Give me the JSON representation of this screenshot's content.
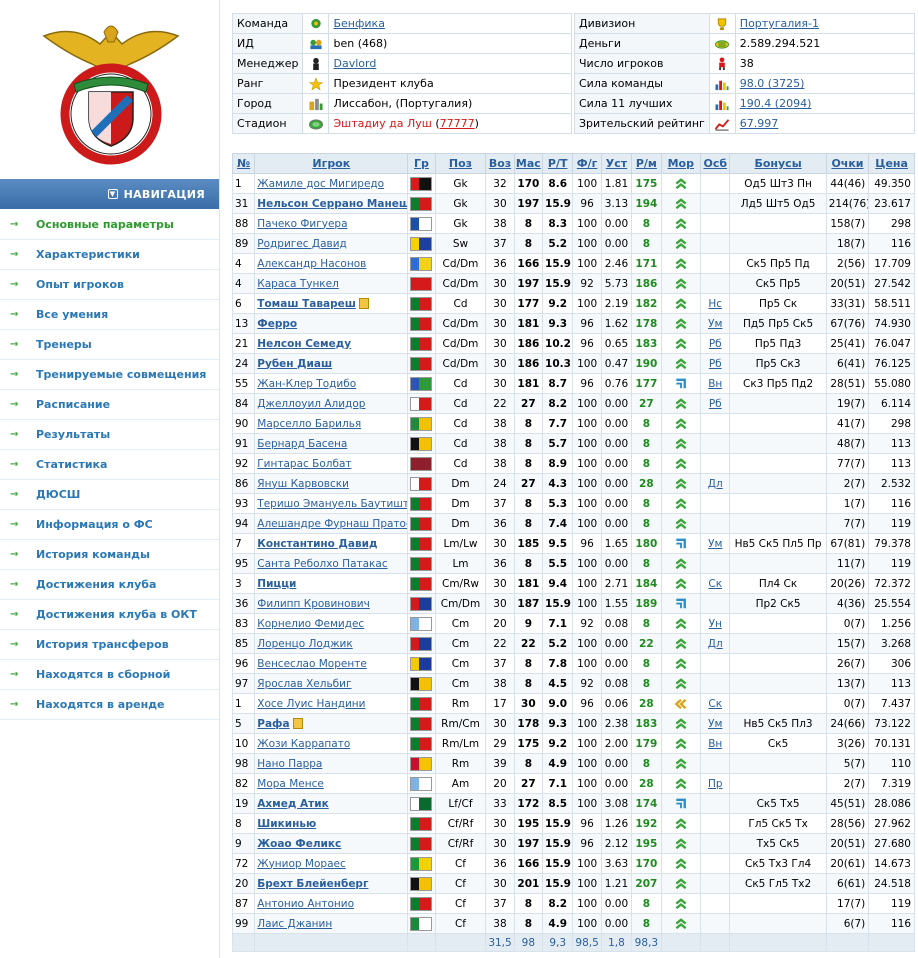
{
  "nav": {
    "header": "НАВИГАЦИЯ",
    "items": [
      "Основные параметры",
      "Характеристики",
      "Опыт игроков",
      "Все умения",
      "Тренеры",
      "Тренируемые совмещения",
      "Расписание",
      "Результаты",
      "Статистика",
      "ДЮСШ",
      "Информация о ФС",
      "История команды",
      "Достижения клуба",
      "Достижения клуба в ОКТ",
      "История трансферов",
      "Находятся в сборной",
      "Находятся в аренде"
    ]
  },
  "info_left": [
    {
      "label": "Команда",
      "value": "Бенфика",
      "link": true,
      "icon": "team-icon"
    },
    {
      "label": "ИД",
      "value": "ben (468)",
      "link": false,
      "icon": "id-icon"
    },
    {
      "label": "Менеджер",
      "value": "Davlord",
      "link": true,
      "icon": "manager-icon"
    },
    {
      "label": "Ранг",
      "value": "Президент клуба",
      "link": false,
      "icon": "star-icon"
    },
    {
      "label": "Город",
      "value": "Лиссабон, (Португалия)",
      "link": false,
      "icon": "city-icon"
    },
    {
      "label": "Стадион",
      "value": "Эштадиу да Луш",
      "extra": "77777",
      "link": "red",
      "icon": "stadium-icon"
    }
  ],
  "info_right": [
    {
      "label": "Дивизион",
      "value": "Португалия-1",
      "link": true,
      "icon": "trophy-icon"
    },
    {
      "label": "Деньги",
      "value": "2.589.294.521",
      "link": false,
      "icon": "money-icon"
    },
    {
      "label": "Число игроков",
      "value": "38",
      "link": false,
      "icon": "player-count-icon"
    },
    {
      "label": "Сила команды",
      "value": "98.0 (3725)",
      "link": true,
      "icon": "bar-chart-icon"
    },
    {
      "label": "Сила 11 лучших",
      "value": "190.4 (2094)",
      "link": true,
      "icon": "bar-chart-icon"
    },
    {
      "label": "Зрительский рейтинг",
      "value": "67.997",
      "link": true,
      "icon": "rating-icon"
    }
  ],
  "columns": [
    "№",
    "Игрок",
    "Гр",
    "Поз",
    "Воз",
    "Мас",
    "Р/Т",
    "Ф/г",
    "Уст",
    "Р/м",
    "Мор",
    "Осб",
    "Бонусы",
    "Очки",
    "Цена"
  ],
  "players": [
    {
      "n": "1",
      "name": "Жамиле дос Мигиредо",
      "b": false,
      "flag": "angola",
      "pos": "Gk",
      "age": "32",
      "mas": "170",
      "rt": "8.6",
      "fg": "100",
      "ust": "1.81",
      "rm": "175",
      "mor": "up",
      "osb": "",
      "bon": "Од5 Шт3 Пн",
      "pts": "44(46)",
      "price": "49.350"
    },
    {
      "n": "31",
      "name": "Нельсон Серрано Манеш",
      "b": true,
      "flag": "portugal",
      "pos": "Gk",
      "age": "30",
      "mas": "197",
      "rt": "15.9",
      "fg": "96",
      "ust": "3.13",
      "rm": "194",
      "mor": "up",
      "osb": "",
      "bon": "Лд5 Шт5 Од5",
      "pts": "214(76)",
      "price": "23.617"
    },
    {
      "n": "88",
      "name": "Пачеко Фигуера",
      "b": false,
      "flag": "honduras",
      "pos": "Gk",
      "age": "38",
      "mas": "8",
      "rt": "8.3",
      "fg": "100",
      "ust": "0.00",
      "rm": "8",
      "mor": "up",
      "osb": "",
      "bon": "",
      "pts": "158(7)",
      "price": "298"
    },
    {
      "n": "89",
      "name": "Родригес Давид",
      "b": false,
      "flag": "colombia",
      "pos": "Sw",
      "age": "37",
      "mas": "8",
      "rt": "5.2",
      "fg": "100",
      "ust": "0.00",
      "rm": "8",
      "mor": "up",
      "osb": "",
      "bon": "",
      "pts": "18(7)",
      "price": "116"
    },
    {
      "n": "4",
      "name": "Александр Насонов",
      "b": false,
      "flag": "ukraine",
      "pos": "Cd/Dm",
      "age": "36",
      "mas": "166",
      "rt": "15.9",
      "fg": "100",
      "ust": "2.46",
      "rm": "171",
      "mor": "up",
      "osb": "",
      "bon": "Ск5 Пр5 Пд",
      "pts": "2(56)",
      "price": "17.709"
    },
    {
      "n": "4",
      "name": "Караса Тункел",
      "b": false,
      "flag": "turkey",
      "pos": "Cd/Dm",
      "age": "30",
      "mas": "197",
      "rt": "15.9",
      "fg": "92",
      "ust": "5.73",
      "rm": "186",
      "mor": "up",
      "osb": "",
      "bon": "Ск5 Пр5",
      "pts": "20(51)",
      "price": "27.542"
    },
    {
      "n": "6",
      "name": "Томаш Тавареш",
      "b": true,
      "note": true,
      "flag": "portugal",
      "pos": "Cd",
      "age": "30",
      "mas": "177",
      "rt": "9.2",
      "fg": "100",
      "ust": "2.19",
      "rm": "182",
      "mor": "up",
      "osb": "Нс",
      "bon": "Пр5 Ск",
      "pts": "33(31)",
      "price": "58.511"
    },
    {
      "n": "13",
      "name": "Ферро",
      "b": true,
      "flag": "portugal",
      "pos": "Cd/Dm",
      "age": "30",
      "mas": "181",
      "rt": "9.3",
      "fg": "96",
      "ust": "1.62",
      "rm": "178",
      "mor": "up",
      "osb": "Ум",
      "bon": "Пд5 Пр5 Ск5",
      "pts": "67(76)",
      "price": "74.930"
    },
    {
      "n": "21",
      "name": "Нелсон Семеду",
      "b": true,
      "flag": "portugal",
      "pos": "Cd/Dm",
      "age": "30",
      "mas": "186",
      "rt": "10.2",
      "fg": "96",
      "ust": "0.65",
      "rm": "183",
      "mor": "up",
      "osb": "Рб",
      "bon": "Пр5 Пд3",
      "pts": "25(41)",
      "price": "76.047"
    },
    {
      "n": "24",
      "name": "Рубен Диаш",
      "b": true,
      "flag": "portugal",
      "pos": "Cd/Dm",
      "age": "30",
      "mas": "186",
      "rt": "10.3",
      "fg": "100",
      "ust": "0.47",
      "rm": "190",
      "mor": "up",
      "osb": "Рб",
      "bon": "Пр5 Ск3",
      "pts": "6(41)",
      "price": "76.125"
    },
    {
      "n": "55",
      "name": "Жан-Клер Тодибо",
      "b": false,
      "flag": "cafrica",
      "pos": "Cd",
      "age": "30",
      "mas": "181",
      "rt": "8.7",
      "fg": "96",
      "ust": "0.76",
      "rm": "177",
      "mor": "right",
      "osb": "Вн",
      "bon": "Ск3 Пр5 Пд2",
      "pts": "28(51)",
      "price": "55.080"
    },
    {
      "n": "84",
      "name": "Джеллоуил Алидор",
      "b": false,
      "flag": "haiti",
      "pos": "Cd",
      "age": "22",
      "mas": "27",
      "rt": "8.2",
      "fg": "100",
      "ust": "0.00",
      "rm": "27",
      "mor": "up",
      "osb": "Рб",
      "bon": "",
      "pts": "19(7)",
      "price": "6.114"
    },
    {
      "n": "90",
      "name": "Марселло Барилья",
      "b": false,
      "flag": "togo",
      "pos": "Cd",
      "age": "38",
      "mas": "8",
      "rt": "7.7",
      "fg": "100",
      "ust": "0.00",
      "rm": "8",
      "mor": "up",
      "osb": "",
      "bon": "",
      "pts": "41(7)",
      "price": "298"
    },
    {
      "n": "91",
      "name": "Бернард Басена",
      "b": false,
      "flag": "uganda",
      "pos": "Cd",
      "age": "38",
      "mas": "8",
      "rt": "5.7",
      "fg": "100",
      "ust": "0.00",
      "rm": "8",
      "mor": "up",
      "osb": "",
      "bon": "",
      "pts": "48(7)",
      "price": "113"
    },
    {
      "n": "92",
      "name": "Гинтарас Болбат",
      "b": false,
      "flag": "latvia",
      "pos": "Cd",
      "age": "38",
      "mas": "8",
      "rt": "8.9",
      "fg": "100",
      "ust": "0.00",
      "rm": "8",
      "mor": "up",
      "osb": "",
      "bon": "",
      "pts": "77(7)",
      "price": "113"
    },
    {
      "n": "86",
      "name": "Януш Карвовски",
      "b": false,
      "flag": "poland",
      "pos": "Dm",
      "age": "24",
      "mas": "27",
      "rt": "4.3",
      "fg": "100",
      "ust": "0.00",
      "rm": "28",
      "mor": "up",
      "osb": "Дл",
      "bon": "",
      "pts": "2(7)",
      "price": "2.532"
    },
    {
      "n": "93",
      "name": "Теришо Эмануель Баутишта",
      "b": false,
      "flag": "portugal",
      "pos": "Dm",
      "age": "37",
      "mas": "8",
      "rt": "5.3",
      "fg": "100",
      "ust": "0.00",
      "rm": "8",
      "mor": "up",
      "osb": "",
      "bon": "",
      "pts": "1(7)",
      "price": "116"
    },
    {
      "n": "94",
      "name": "Алешандре Фурнаш Пратос",
      "b": false,
      "flag": "portugal",
      "pos": "Dm",
      "age": "36",
      "mas": "8",
      "rt": "7.4",
      "fg": "100",
      "ust": "0.00",
      "rm": "8",
      "mor": "up",
      "osb": "",
      "bon": "",
      "pts": "7(7)",
      "price": "119"
    },
    {
      "n": "7",
      "name": "Константино Давид",
      "b": true,
      "flag": "portugal",
      "pos": "Lm/Lw",
      "age": "30",
      "mas": "185",
      "rt": "9.5",
      "fg": "96",
      "ust": "1.65",
      "rm": "180",
      "mor": "right",
      "osb": "Ум",
      "bon": "Нв5 Ск5 Пл5 Пр",
      "pts": "67(81)",
      "price": "79.378"
    },
    {
      "n": "95",
      "name": "Санта Реболхо Патакас",
      "b": false,
      "flag": "portugal",
      "pos": "Lm",
      "age": "36",
      "mas": "8",
      "rt": "5.5",
      "fg": "100",
      "ust": "0.00",
      "rm": "8",
      "mor": "up",
      "osb": "",
      "bon": "",
      "pts": "11(7)",
      "price": "119"
    },
    {
      "n": "3",
      "name": "Пицци",
      "b": true,
      "flag": "portugal",
      "pos": "Cm/Rw",
      "age": "30",
      "mas": "181",
      "rt": "9.4",
      "fg": "100",
      "ust": "2.71",
      "rm": "184",
      "mor": "up",
      "osb": "Ск",
      "bon": "Пл4 Ск",
      "pts": "20(26)",
      "price": "72.372"
    },
    {
      "n": "36",
      "name": "Филипп Кровинович",
      "b": false,
      "flag": "croatia",
      "pos": "Cm/Dm",
      "age": "30",
      "mas": "187",
      "rt": "15.9",
      "fg": "100",
      "ust": "1.55",
      "rm": "189",
      "mor": "right",
      "osb": "",
      "bon": "Пр2 Ск5",
      "pts": "4(36)",
      "price": "25.554"
    },
    {
      "n": "83",
      "name": "Корнелио Фемидес",
      "b": false,
      "flag": "argentina",
      "pos": "Cm",
      "age": "20",
      "mas": "9",
      "rt": "7.1",
      "fg": "92",
      "ust": "0.08",
      "rm": "8",
      "mor": "up",
      "osb": "Ун",
      "bon": "",
      "pts": "0(7)",
      "price": "1.256"
    },
    {
      "n": "85",
      "name": "Лоренцо Лоджик",
      "b": false,
      "flag": "croatia",
      "pos": "Cm",
      "age": "22",
      "mas": "22",
      "rt": "5.2",
      "fg": "100",
      "ust": "0.00",
      "rm": "22",
      "mor": "up",
      "osb": "Дл",
      "bon": "",
      "pts": "15(7)",
      "price": "3.268"
    },
    {
      "n": "96",
      "name": "Венсеслао Моренте",
      "b": false,
      "flag": "venezuela",
      "pos": "Cm",
      "age": "37",
      "mas": "8",
      "rt": "7.8",
      "fg": "100",
      "ust": "0.00",
      "rm": "8",
      "mor": "up",
      "osb": "",
      "bon": "",
      "pts": "26(7)",
      "price": "306"
    },
    {
      "n": "97",
      "name": "Ярослав Хельбиг",
      "b": false,
      "flag": "germany",
      "pos": "Cm",
      "age": "38",
      "mas": "8",
      "rt": "4.5",
      "fg": "92",
      "ust": "0.08",
      "rm": "8",
      "mor": "up",
      "osb": "",
      "bon": "",
      "pts": "13(7)",
      "price": "113"
    },
    {
      "n": "1",
      "name": "Хосе Луис Нандини",
      "b": false,
      "flag": "portugal",
      "pos": "Rm",
      "age": "17",
      "mas": "30",
      "rt": "9.0",
      "fg": "96",
      "ust": "0.06",
      "rm": "28",
      "mor": "left",
      "osb": "Ск",
      "bon": "",
      "pts": "0(7)",
      "price": "7.437"
    },
    {
      "n": "5",
      "name": "Рафа",
      "b": true,
      "note": true,
      "flag": "portugal",
      "pos": "Rm/Cm",
      "age": "30",
      "mas": "178",
      "rt": "9.3",
      "fg": "100",
      "ust": "2.38",
      "rm": "183",
      "mor": "up",
      "osb": "Ум",
      "bon": "Нв5 Ск5 Пл3",
      "pts": "24(66)",
      "price": "73.122"
    },
    {
      "n": "10",
      "name": "Жози Каррапато",
      "b": false,
      "flag": "portugal",
      "pos": "Rm/Lm",
      "age": "29",
      "mas": "175",
      "rt": "9.2",
      "fg": "100",
      "ust": "2.00",
      "rm": "179",
      "mor": "up",
      "osb": "Вн",
      "bon": "Ск5",
      "pts": "3(26)",
      "price": "70.131"
    },
    {
      "n": "98",
      "name": "Нано Парра",
      "b": false,
      "flag": "spain",
      "pos": "Rm",
      "age": "39",
      "mas": "8",
      "rt": "4.9",
      "fg": "100",
      "ust": "0.00",
      "rm": "8",
      "mor": "up",
      "osb": "",
      "bon": "",
      "pts": "5(7)",
      "price": "110"
    },
    {
      "n": "82",
      "name": "Мора Менсе",
      "b": false,
      "flag": "argentina",
      "pos": "Am",
      "age": "20",
      "mas": "27",
      "rt": "7.1",
      "fg": "100",
      "ust": "0.00",
      "rm": "28",
      "mor": "up",
      "osb": "Пр",
      "bon": "",
      "pts": "2(7)",
      "price": "7.319"
    },
    {
      "n": "19",
      "name": "Ахмед Атик",
      "b": true,
      "flag": "pakistan",
      "pos": "Lf/Cf",
      "age": "33",
      "mas": "172",
      "rt": "8.5",
      "fg": "100",
      "ust": "3.08",
      "rm": "174",
      "mor": "right",
      "osb": "",
      "bon": "Ск5 Тх5",
      "pts": "45(51)",
      "price": "28.086"
    },
    {
      "n": "8",
      "name": "Шикинью",
      "b": true,
      "flag": "portugal",
      "pos": "Cf/Rf",
      "age": "30",
      "mas": "195",
      "rt": "15.9",
      "fg": "96",
      "ust": "1.26",
      "rm": "192",
      "mor": "up",
      "osb": "",
      "bon": "Гл5 Ск5 Тх",
      "pts": "28(56)",
      "price": "27.962"
    },
    {
      "n": "9",
      "name": "Жоао Феликс",
      "b": true,
      "flag": "portugal",
      "pos": "Cf/Rf",
      "age": "30",
      "mas": "197",
      "rt": "15.9",
      "fg": "96",
      "ust": "2.12",
      "rm": "195",
      "mor": "up",
      "osb": "",
      "bon": "Тх5 Ск5",
      "pts": "20(51)",
      "price": "27.680"
    },
    {
      "n": "72",
      "name": "Жуниор Мораес",
      "b": false,
      "flag": "brazil",
      "pos": "Cf",
      "age": "36",
      "mas": "166",
      "rt": "15.9",
      "fg": "100",
      "ust": "3.63",
      "rm": "170",
      "mor": "up",
      "osb": "",
      "bon": "Ск5 Тх3 Гл4",
      "pts": "20(61)",
      "price": "14.673"
    },
    {
      "n": "20",
      "name": "Брехт Блейенберг",
      "b": true,
      "flag": "belgium",
      "pos": "Cf",
      "age": "30",
      "mas": "201",
      "rt": "15.9",
      "fg": "100",
      "ust": "1.21",
      "rm": "207",
      "mor": "up",
      "osb": "",
      "bon": "Ск5 Гл5 Тх2",
      "pts": "6(61)",
      "price": "24.518"
    },
    {
      "n": "87",
      "name": "Антонио Антонио",
      "b": false,
      "flag": "portugal",
      "pos": "Cf",
      "age": "37",
      "mas": "8",
      "rt": "8.2",
      "fg": "100",
      "ust": "0.00",
      "rm": "8",
      "mor": "up",
      "osb": "",
      "bon": "",
      "pts": "17(7)",
      "price": "119"
    },
    {
      "n": "99",
      "name": "Лаис Джанин",
      "b": false,
      "flag": "algeria",
      "pos": "Cf",
      "age": "38",
      "mas": "8",
      "rt": "4.9",
      "fg": "100",
      "ust": "0.00",
      "rm": "8",
      "mor": "up",
      "osb": "",
      "bon": "",
      "pts": "6(7)",
      "price": "116"
    }
  ],
  "footer": {
    "age": "31,5",
    "mas": "98",
    "rt": "9,3",
    "fg": "98,5",
    "ust": "1,8",
    "rm": "98,3"
  },
  "flags": {
    "portugal": [
      "#0f7d2e",
      "#d61a1a"
    ],
    "angola": [
      "#d81a1a",
      "#111111"
    ],
    "honduras": [
      "#1b4fa8",
      "#ffffff"
    ],
    "colombia": [
      "#f6d200",
      "#1d3fa0"
    ],
    "ukraine": [
      "#2d6fd6",
      "#f3d21a"
    ],
    "turkey": [
      "#d61a1a",
      "#d61a1a"
    ],
    "cafrica": [
      "#2a56b8",
      "#2e9a3a"
    ],
    "haiti": [
      "#ffffff",
      "#d61a1a"
    ],
    "togo": [
      "#1f8a3a",
      "#f2c200"
    ],
    "uganda": [
      "#111111",
      "#f2c200"
    ],
    "latvia": [
      "#8e1f2c",
      "#8e1f2c"
    ],
    "poland": [
      "#ffffff",
      "#d61a1a"
    ],
    "croatia": [
      "#d61a1a",
      "#1b3f98"
    ],
    "argentina": [
      "#7fb3e6",
      "#ffffff"
    ],
    "venezuela": [
      "#f5c800",
      "#1d3aa0"
    ],
    "germany": [
      "#111111",
      "#f2c200"
    ],
    "spain": [
      "#c8102e",
      "#f5c400"
    ],
    "pakistan": [
      "#ffffff",
      "#0b6b2e"
    ],
    "brazil": [
      "#1b9a3a",
      "#f2d200"
    ],
    "belgium": [
      "#111111",
      "#f2c200"
    ],
    "algeria": [
      "#1b8a3a",
      "#ffffff"
    ]
  },
  "colors": {
    "nav_header": "#4a7db8",
    "link": "#2a5f9e",
    "green_value": "#1f8a1f",
    "morale": "#3aa63a"
  }
}
